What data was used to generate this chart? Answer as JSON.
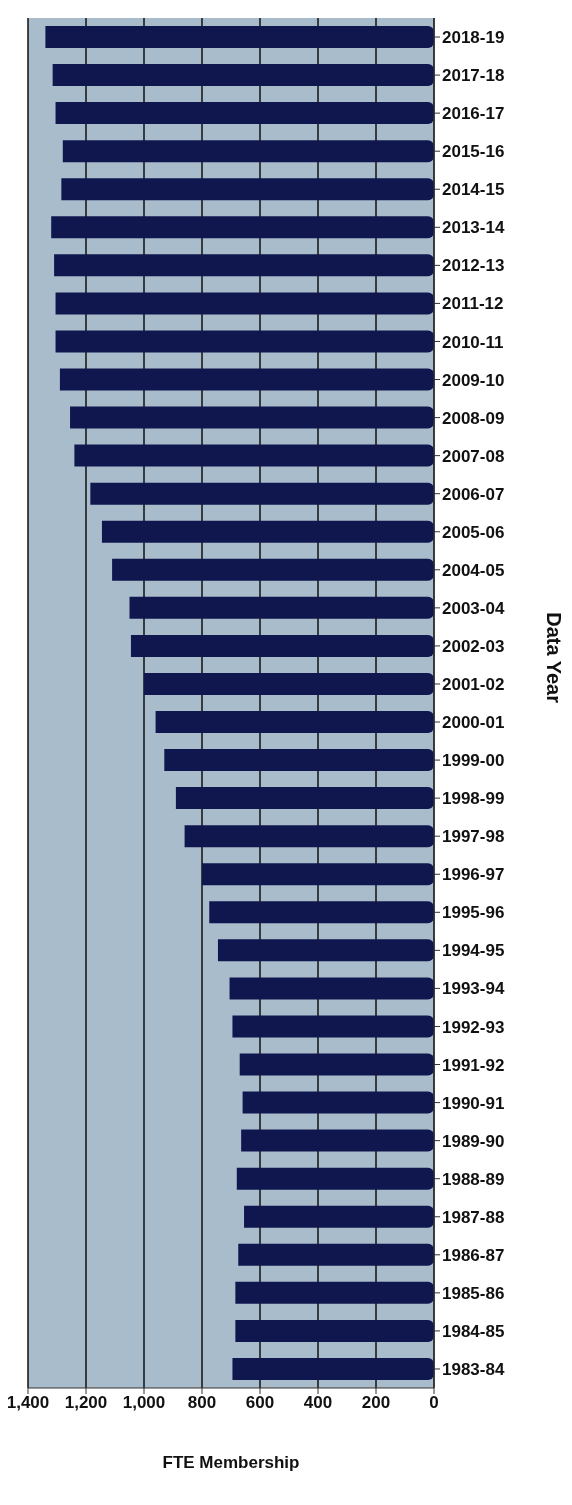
{
  "chart_data": {
    "type": "bar",
    "orientation": "horizontal",
    "xlabel": "FTE Membership",
    "ylabel": "Data Year",
    "categories": [
      "2018-19",
      "2017-18",
      "2016-17",
      "2015-16",
      "2014-15",
      "2013-14",
      "2012-13",
      "2011-12",
      "2010-11",
      "2009-10",
      "2008-09",
      "2007-08",
      "2006-07",
      "2005-06",
      "2004-05",
      "2003-04",
      "2002-03",
      "2001-02",
      "2000-01",
      "1999-00",
      "1998-99",
      "1997-98",
      "1996-97",
      "1995-96",
      "1994-95",
      "1993-94",
      "1992-93",
      "1991-92",
      "1990-91",
      "1989-90",
      "1988-89",
      "1987-88",
      "1986-87",
      "1985-86",
      "1984-85",
      "1983-84"
    ],
    "values": [
      1340,
      1315,
      1305,
      1280,
      1285,
      1320,
      1310,
      1305,
      1305,
      1290,
      1255,
      1240,
      1185,
      1145,
      1110,
      1050,
      1045,
      1000,
      960,
      930,
      890,
      860,
      800,
      775,
      745,
      705,
      695,
      670,
      660,
      665,
      680,
      655,
      675,
      685,
      685,
      695
    ],
    "color": "#10174f",
    "xlim": [
      1400,
      0
    ],
    "xticks": [
      {
        "value": 1400,
        "label": "1,400"
      },
      {
        "value": 1200,
        "label": "1,200"
      },
      {
        "value": 1000,
        "label": "1,000"
      },
      800,
      600,
      400,
      200,
      0
    ],
    "grid": "x"
  }
}
